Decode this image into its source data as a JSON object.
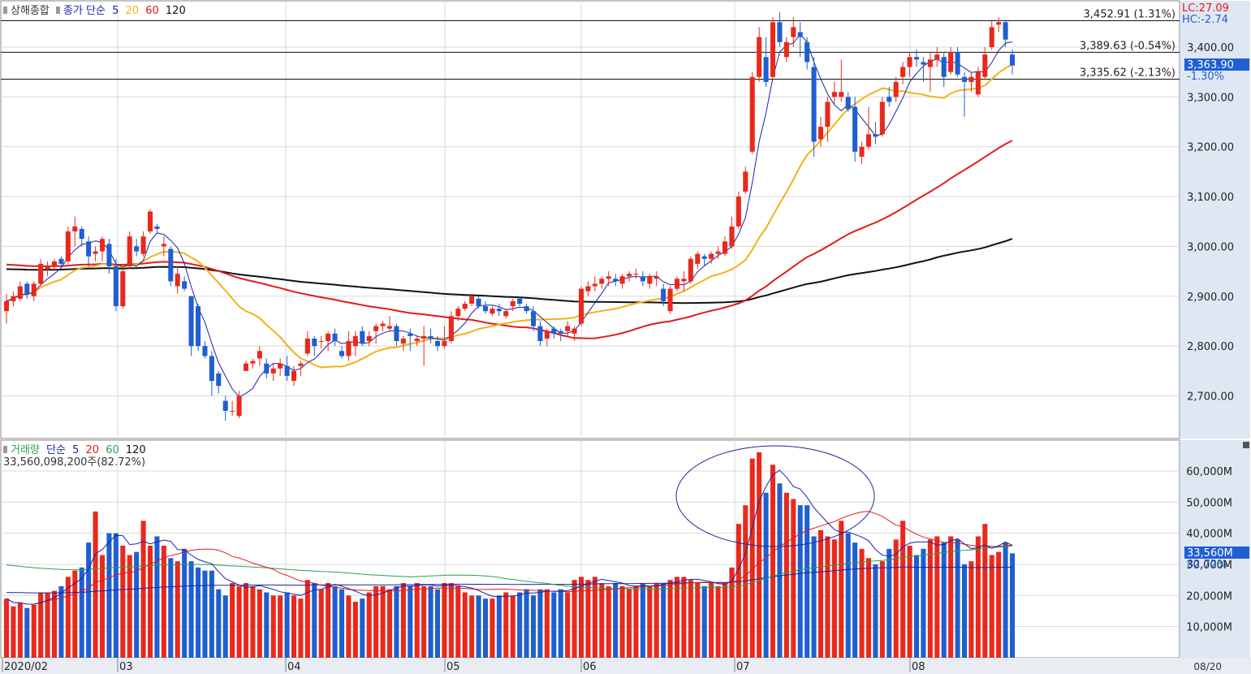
{
  "price_panel": {
    "legend": {
      "title": "상해종합",
      "ma_label": "종가 단순",
      "ma5": "5",
      "ma20": "20",
      "ma60": "60",
      "ma120": "120"
    },
    "top_right": {
      "lc": "LC:27.09",
      "hc": "HC:-2.74"
    },
    "lines": [
      {
        "label": "3,452.91 (1.31%)",
        "value": 3452.91
      },
      {
        "label": "3,389.63 (-0.54%)",
        "value": 3389.63
      },
      {
        "label": "3,335.62 (-2.13%)",
        "value": 3335.62
      }
    ],
    "current_price_tag": "3,363.90",
    "current_change": "-1.30%",
    "y_ticks": [
      "3,400.00",
      "3,300.00",
      "3,200.00",
      "3,100.00",
      "3,000.00",
      "2,900.00",
      "2,800.00",
      "2,700.00"
    ]
  },
  "volume_panel": {
    "legend": {
      "title": "거래량",
      "ma_label": "단순",
      "ma5": "5",
      "ma20": "20",
      "ma60": "60",
      "ma120": "120",
      "value_text": "33,560,098,200주(82.72%)"
    },
    "current_volume_tag": "33,560M",
    "current_ratio": "82.72%",
    "y_ticks": [
      "60,000M",
      "50,000M",
      "40,000M",
      "30,000M",
      "20,000M",
      "10,000M"
    ]
  },
  "x_axis": {
    "labels": [
      "2020/02",
      "03",
      "04",
      "05",
      "06",
      "07",
      "08"
    ],
    "corner_date": "08/20"
  },
  "colors": {
    "up": "#e8291c",
    "down": "#1f5fd0",
    "ma5": "#1a23a8",
    "ma20": "#f2b21a",
    "ma60": "#e11b1b",
    "ma120": "#111111",
    "vol_ma60": "#2aa04a",
    "tag_bg": "#1f5fd0"
  },
  "chart_data": {
    "type": "candlestick",
    "price_ylim": [
      2640,
      3490
    ],
    "volume_ylim": [
      0,
      68000
    ],
    "candles_note": "OHLC in index points; volume in millions of shares",
    "candles": [
      [
        2870,
        2905,
        2845,
        2890,
        19000
      ],
      [
        2890,
        2910,
        2880,
        2900,
        16500
      ],
      [
        2895,
        2930,
        2890,
        2920,
        17500
      ],
      [
        2925,
        2930,
        2895,
        2905,
        16000
      ],
      [
        2900,
        2930,
        2890,
        2925,
        17000
      ],
      [
        2925,
        2975,
        2920,
        2965,
        21000
      ],
      [
        2955,
        2970,
        2940,
        2960,
        21000
      ],
      [
        2960,
        2975,
        2950,
        2970,
        21500
      ],
      [
        2975,
        2980,
        2960,
        2965,
        23000
      ],
      [
        2970,
        3040,
        2965,
        3030,
        26000
      ],
      [
        3030,
        3060,
        3000,
        3040,
        28000
      ],
      [
        3035,
        3040,
        3000,
        3015,
        29000
      ],
      [
        3010,
        3020,
        2960,
        2980,
        37000
      ],
      [
        2985,
        3000,
        2970,
        2990,
        47000
      ],
      [
        2990,
        3020,
        2970,
        3015,
        33000
      ],
      [
        3005,
        3015,
        2945,
        2960,
        40000
      ],
      [
        2960,
        2975,
        2870,
        2880,
        40000
      ],
      [
        2880,
        2960,
        2875,
        2950,
        36000
      ],
      [
        2960,
        3030,
        2955,
        3020,
        33000
      ],
      [
        3000,
        3015,
        2980,
        2990,
        34000
      ],
      [
        2985,
        3030,
        2980,
        3020,
        44000
      ],
      [
        3030,
        3075,
        3025,
        3070,
        36000
      ],
      [
        3040,
        3045,
        3025,
        3035,
        39000
      ],
      [
        3000,
        3020,
        2980,
        3005,
        36000
      ],
      [
        2995,
        3000,
        2920,
        2930,
        32000
      ],
      [
        2920,
        2960,
        2905,
        2945,
        31000
      ],
      [
        2930,
        2940,
        2910,
        2915,
        35000
      ],
      [
        2900,
        2900,
        2780,
        2800,
        31000
      ],
      [
        2880,
        2885,
        2790,
        2800,
        29000
      ],
      [
        2800,
        2810,
        2775,
        2780,
        28000
      ],
      [
        2780,
        2790,
        2700,
        2730,
        28000
      ],
      [
        2745,
        2750,
        2705,
        2720,
        22000
      ],
      [
        2690,
        2700,
        2650,
        2670,
        20000
      ],
      [
        2670,
        2690,
        2660,
        2670,
        24000
      ],
      [
        2660,
        2710,
        2655,
        2700,
        23000
      ],
      [
        2750,
        2770,
        2750,
        2765,
        24000
      ],
      [
        2765,
        2775,
        2755,
        2770,
        23000
      ],
      [
        2775,
        2800,
        2760,
        2790,
        22000
      ],
      [
        2765,
        2775,
        2735,
        2745,
        21000
      ],
      [
        2745,
        2765,
        2730,
        2755,
        20000
      ],
      [
        2755,
        2775,
        2740,
        2765,
        20000
      ],
      [
        2760,
        2780,
        2730,
        2740,
        21000
      ],
      [
        2730,
        2760,
        2720,
        2750,
        20000
      ],
      [
        2760,
        2770,
        2740,
        2765,
        19000
      ],
      [
        2785,
        2830,
        2780,
        2815,
        25000
      ],
      [
        2815,
        2820,
        2780,
        2800,
        24000
      ],
      [
        2810,
        2820,
        2795,
        2810,
        22000
      ],
      [
        2810,
        2830,
        2790,
        2825,
        24000
      ],
      [
        2825,
        2835,
        2800,
        2810,
        23000
      ],
      [
        2790,
        2800,
        2775,
        2780,
        22000
      ],
      [
        2780,
        2830,
        2770,
        2810,
        20000
      ],
      [
        2800,
        2830,
        2780,
        2820,
        18000
      ],
      [
        2830,
        2840,
        2800,
        2805,
        19000
      ],
      [
        2810,
        2830,
        2800,
        2820,
        21000
      ],
      [
        2830,
        2845,
        2805,
        2840,
        23000
      ],
      [
        2840,
        2850,
        2830,
        2845,
        23000
      ],
      [
        2835,
        2860,
        2830,
        2840,
        22000
      ],
      [
        2840,
        2845,
        2800,
        2810,
        23000
      ],
      [
        2805,
        2820,
        2790,
        2815,
        24000
      ],
      [
        2825,
        2835,
        2790,
        2820,
        23000
      ],
      [
        2810,
        2820,
        2800,
        2815,
        24000
      ],
      [
        2815,
        2840,
        2760,
        2820,
        23000
      ],
      [
        2820,
        2835,
        2805,
        2815,
        23000
      ],
      [
        2810,
        2820,
        2790,
        2800,
        22000
      ],
      [
        2800,
        2840,
        2795,
        2810,
        24000
      ],
      [
        2810,
        2870,
        2805,
        2860,
        24000
      ],
      [
        2860,
        2880,
        2850,
        2875,
        23000
      ],
      [
        2875,
        2890,
        2870,
        2885,
        21000
      ],
      [
        2885,
        2905,
        2880,
        2900,
        20000
      ],
      [
        2895,
        2900,
        2875,
        2880,
        20000
      ],
      [
        2880,
        2890,
        2865,
        2870,
        19000
      ],
      [
        2865,
        2880,
        2860,
        2875,
        19000
      ],
      [
        2875,
        2885,
        2860,
        2870,
        20000
      ],
      [
        2860,
        2875,
        2855,
        2870,
        21000
      ],
      [
        2880,
        2895,
        2870,
        2890,
        20000
      ],
      [
        2895,
        2900,
        2880,
        2885,
        21000
      ],
      [
        2880,
        2885,
        2865,
        2870,
        22000
      ],
      [
        2870,
        2880,
        2830,
        2840,
        20000
      ],
      [
        2840,
        2850,
        2800,
        2810,
        22000
      ],
      [
        2815,
        2835,
        2800,
        2830,
        22000
      ],
      [
        2835,
        2840,
        2815,
        2825,
        21000
      ],
      [
        2830,
        2835,
        2810,
        2825,
        22000
      ],
      [
        2830,
        2850,
        2820,
        2840,
        21000
      ],
      [
        2825,
        2840,
        2810,
        2835,
        25000
      ],
      [
        2845,
        2920,
        2840,
        2915,
        26000
      ],
      [
        2910,
        2930,
        2900,
        2920,
        25000
      ],
      [
        2920,
        2940,
        2910,
        2925,
        26000
      ],
      [
        2925,
        2940,
        2915,
        2935,
        24000
      ],
      [
        2935,
        2950,
        2920,
        2940,
        23000
      ],
      [
        2935,
        2945,
        2920,
        2930,
        24000
      ],
      [
        2925,
        2945,
        2915,
        2940,
        23000
      ],
      [
        2940,
        2950,
        2930,
        2945,
        22000
      ],
      [
        2945,
        2955,
        2935,
        2945,
        23000
      ],
      [
        2940,
        2950,
        2920,
        2930,
        24000
      ],
      [
        2925,
        2945,
        2915,
        2940,
        23000
      ],
      [
        2935,
        2950,
        2920,
        2940,
        24000
      ],
      [
        2915,
        2925,
        2880,
        2890,
        24000
      ],
      [
        2870,
        2920,
        2865,
        2915,
        25000
      ],
      [
        2915,
        2940,
        2910,
        2935,
        26000
      ],
      [
        2930,
        2950,
        2910,
        2935,
        26000
      ],
      [
        2930,
        2980,
        2925,
        2975,
        25000
      ],
      [
        2965,
        2990,
        2955,
        2985,
        24000
      ],
      [
        2980,
        2985,
        2960,
        2975,
        23000
      ],
      [
        2975,
        2990,
        2965,
        2985,
        24000
      ],
      [
        2985,
        3000,
        2975,
        2990,
        23000
      ],
      [
        2985,
        3020,
        2980,
        3010,
        24000
      ],
      [
        3000,
        3060,
        2995,
        3040,
        29000
      ],
      [
        3040,
        3110,
        3035,
        3100,
        43000
      ],
      [
        3110,
        3160,
        3105,
        3150,
        49000
      ],
      [
        3190,
        3350,
        3185,
        3340,
        64000
      ],
      [
        3340,
        3440,
        3330,
        3420,
        66000
      ],
      [
        3380,
        3420,
        3320,
        3330,
        53000
      ],
      [
        3340,
        3460,
        3335,
        3450,
        62000
      ],
      [
        3450,
        3470,
        3400,
        3410,
        56000
      ],
      [
        3380,
        3420,
        3370,
        3410,
        53000
      ],
      [
        3420,
        3460,
        3400,
        3440,
        51000
      ],
      [
        3430,
        3450,
        3380,
        3420,
        49000
      ],
      [
        3410,
        3420,
        3355,
        3370,
        49000
      ],
      [
        3360,
        3380,
        3180,
        3210,
        39000
      ],
      [
        3215,
        3260,
        3200,
        3240,
        41000
      ],
      [
        3240,
        3300,
        3210,
        3290,
        39000
      ],
      [
        3300,
        3330,
        3285,
        3310,
        38000
      ],
      [
        3300,
        3375,
        3290,
        3310,
        44000
      ],
      [
        3300,
        3310,
        3270,
        3275,
        40000
      ],
      [
        3280,
        3300,
        3170,
        3190,
        37000
      ],
      [
        3180,
        3210,
        3165,
        3200,
        35000
      ],
      [
        3200,
        3280,
        3195,
        3225,
        32000
      ],
      [
        3225,
        3250,
        3205,
        3220,
        30000
      ],
      [
        3225,
        3300,
        3220,
        3290,
        31000
      ],
      [
        3300,
        3320,
        3280,
        3290,
        35000
      ],
      [
        3300,
        3340,
        3290,
        3330,
        38000
      ],
      [
        3340,
        3370,
        3325,
        3360,
        44000
      ],
      [
        3360,
        3390,
        3340,
        3380,
        36000
      ],
      [
        3380,
        3395,
        3360,
        3375,
        33000
      ],
      [
        3370,
        3380,
        3330,
        3365,
        35000
      ],
      [
        3360,
        3390,
        3310,
        3375,
        38000
      ],
      [
        3375,
        3400,
        3360,
        3385,
        39000
      ],
      [
        3380,
        3390,
        3320,
        3340,
        37000
      ],
      [
        3350,
        3400,
        3345,
        3390,
        39000
      ],
      [
        3390,
        3400,
        3340,
        3345,
        38000
      ],
      [
        3340,
        3350,
        3260,
        3330,
        30000
      ],
      [
        3330,
        3350,
        3310,
        3340,
        31000
      ],
      [
        3305,
        3360,
        3300,
        3350,
        39000
      ],
      [
        3340,
        3400,
        3335,
        3385,
        43000
      ],
      [
        3400,
        3455,
        3395,
        3440,
        33000
      ],
      [
        3445,
        3460,
        3430,
        3450,
        34000
      ],
      [
        3450,
        3455,
        3400,
        3415,
        37000
      ],
      [
        3385,
        3395,
        3345,
        3363,
        33560
      ]
    ]
  }
}
